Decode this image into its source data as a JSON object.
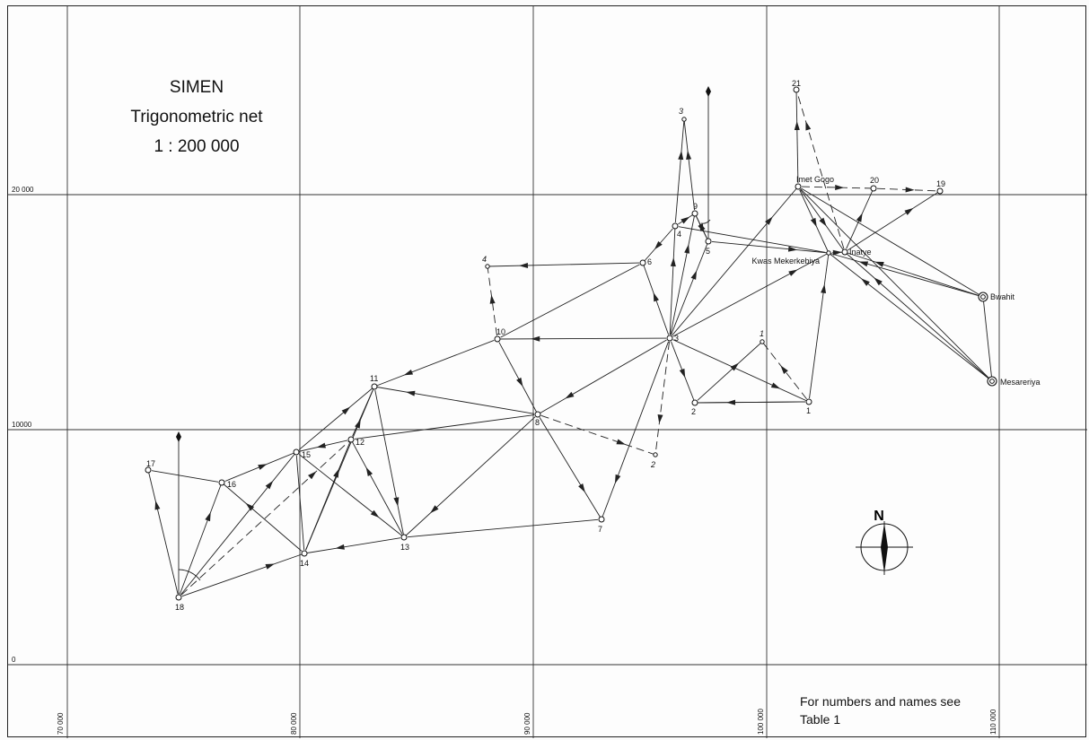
{
  "title": {
    "line1": "SIMEN",
    "line2": "Trigonometric net",
    "line3": "1 : 200 000"
  },
  "note": {
    "line1": "For numbers and names see",
    "line2": "Table 1"
  },
  "north_label": "N",
  "grid": {
    "y_labels": [
      "20 000",
      "10000",
      "0"
    ],
    "x_labels": [
      "70 000",
      "80 000",
      "90 000",
      "100 000",
      "110 000"
    ]
  },
  "stations": [
    {
      "id": "s1",
      "label": "1"
    },
    {
      "id": "s2",
      "label": "2"
    },
    {
      "id": "s3",
      "label": "3"
    },
    {
      "id": "s4",
      "label": "4"
    },
    {
      "id": "s5",
      "label": "5"
    },
    {
      "id": "s6",
      "label": "6"
    },
    {
      "id": "s7",
      "label": "7"
    },
    {
      "id": "s8",
      "label": "8"
    },
    {
      "id": "s9",
      "label": "9"
    },
    {
      "id": "s10",
      "label": "10"
    },
    {
      "id": "s11",
      "label": "11"
    },
    {
      "id": "s12",
      "label": "12"
    },
    {
      "id": "s13",
      "label": "13"
    },
    {
      "id": "s14",
      "label": "14"
    },
    {
      "id": "s15",
      "label": "15"
    },
    {
      "id": "s16",
      "label": "16"
    },
    {
      "id": "s17",
      "label": "17"
    },
    {
      "id": "s18",
      "label": "18"
    },
    {
      "id": "s19",
      "label": "19"
    },
    {
      "id": "s20",
      "label": "20"
    },
    {
      "id": "s21",
      "label": "21"
    },
    {
      "id": "imet",
      "label": "Imet Gogo"
    },
    {
      "id": "inatye",
      "label": "Inatye"
    },
    {
      "id": "kwas",
      "label": "Kwas Mekerkebiya"
    },
    {
      "id": "bwahit",
      "label": "Bwahit"
    },
    {
      "id": "mesareriya",
      "label": "Mesareriya"
    },
    {
      "id": "p1",
      "label": "1"
    },
    {
      "id": "p2",
      "label": "2"
    },
    {
      "id": "p3",
      "label": "3"
    },
    {
      "id": "p4",
      "label": "4"
    }
  ]
}
